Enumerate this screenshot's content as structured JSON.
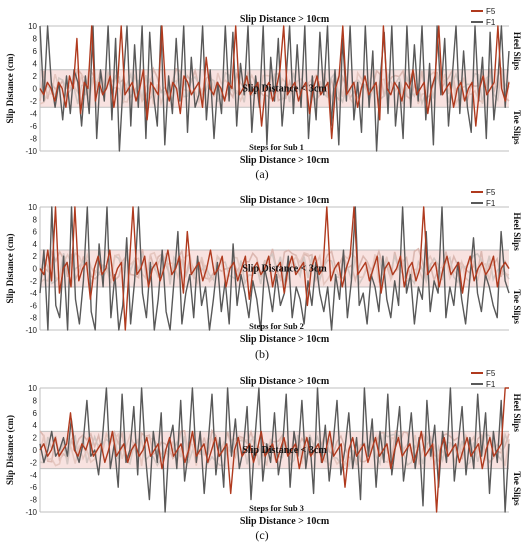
{
  "colors": {
    "F5": "#b03a1e",
    "F1": "#595959",
    "band": "#f6d8d6",
    "grid": "#bfbfbf",
    "pale_series": [
      "#d8b4ac",
      "#cfc3bf",
      "#e3c4bc"
    ]
  },
  "annotations": {
    "top": "Slip Distance > 10cm",
    "middle": "Slip Distance < 3cm",
    "bottom": "Slip Distance > 10cm",
    "heel": "Heel Slips",
    "toe": "Toe Slips"
  },
  "chart_data": [
    {
      "type": "line",
      "caption": "(a)",
      "xlabel": "Steps for Sub 1",
      "ylabel": "Slip Distance (cm)",
      "ylim": [
        -10,
        10
      ],
      "yticks": [
        10,
        8,
        6,
        4,
        2,
        0,
        -2,
        -4,
        -6,
        -8,
        -10
      ],
      "threshold_lines": [
        3,
        -3
      ],
      "legend": [
        "F5",
        "F1"
      ],
      "legend_placement": "top-right",
      "series": [
        {
          "name": "F1",
          "values": [
            10,
            -2,
            10,
            1,
            -3,
            1,
            -5,
            2,
            -4,
            3,
            1,
            -6,
            2,
            -4,
            10,
            -8,
            3,
            -2,
            10,
            -5,
            8,
            -10,
            1,
            10,
            -6,
            7,
            -3,
            10,
            -8,
            9,
            -1,
            -6,
            10,
            -9,
            2,
            -4,
            8,
            -2,
            10,
            -7,
            5,
            -3,
            -1,
            10,
            -5,
            3,
            -8,
            1,
            -4,
            10,
            -2,
            9,
            -6,
            4,
            -1,
            10,
            -7,
            2,
            -3,
            10,
            -9,
            5,
            -2,
            8,
            -6,
            1,
            10,
            -4,
            7,
            -3,
            10,
            -8,
            2,
            -5,
            9,
            -1,
            10,
            -6,
            3,
            -9,
            8,
            -2,
            10,
            -5,
            1,
            -7,
            10,
            -3,
            6,
            -10,
            2,
            9,
            -4,
            10,
            -6,
            1,
            -8,
            10,
            -3,
            7,
            -2,
            10,
            -5,
            4,
            -9,
            10,
            -1,
            8,
            -6,
            2,
            10,
            -4,
            6,
            -3,
            -7,
            10,
            -2,
            5,
            -8,
            9,
            -5,
            1,
            10,
            -3,
            6
          ]
        },
        {
          "name": "F5",
          "values": [
            0,
            -1,
            1,
            0,
            -2,
            1,
            0,
            -3,
            2,
            0,
            8,
            -4,
            1,
            0,
            10,
            -2,
            1,
            -1,
            0,
            2,
            -3,
            1,
            10,
            -1,
            0,
            1,
            -2,
            0,
            3,
            -5,
            1,
            0,
            -1,
            10,
            0,
            -2,
            1,
            0,
            -4,
            2,
            1,
            -1,
            0,
            1,
            -3,
            5,
            0,
            -1,
            1,
            0,
            -2,
            1,
            0,
            10,
            -1,
            0,
            2,
            -1,
            0,
            1,
            -6,
            0,
            1,
            -2,
            0,
            3,
            10,
            -1,
            0,
            1,
            -2,
            0,
            1,
            -4,
            0,
            2,
            -1,
            0,
            1,
            -8,
            0,
            2,
            10,
            -1,
            0,
            1,
            -3,
            0,
            2,
            -1,
            0,
            1,
            -5,
            10,
            0,
            -1,
            1,
            0,
            -2,
            1,
            0,
            3,
            -1,
            0,
            1,
            -4,
            0,
            2,
            10,
            -1,
            0,
            1,
            -3,
            0,
            1,
            -2,
            0,
            1,
            -6,
            0,
            2,
            -1,
            0,
            1,
            10,
            0,
            -2,
            1
          ]
        }
      ]
    },
    {
      "type": "line",
      "caption": "(b)",
      "xlabel": "Steps for Sub 2",
      "ylabel": "Slip Distance (cm)",
      "ylim": [
        -10,
        10
      ],
      "yticks": [
        10,
        8,
        6,
        4,
        2,
        0,
        -2,
        -4,
        -6,
        -8,
        -10
      ],
      "threshold_lines": [
        3,
        -3
      ],
      "legend": [
        "F5",
        "F1"
      ],
      "legend_placement": "top-right",
      "series": [
        {
          "name": "F1",
          "values": [
            -4,
            3,
            -10,
            10,
            -6,
            -8,
            2,
            -10,
            10,
            -5,
            -9,
            -2,
            10,
            -7,
            -10,
            4,
            -3,
            10,
            -8,
            -1,
            -10,
            -6,
            5,
            -9,
            -2,
            10,
            -4,
            -8,
            1,
            -10,
            -5,
            3,
            -7,
            -10,
            -2,
            6,
            -9,
            -4,
            -1,
            -8,
            2,
            -6,
            -3,
            -10,
            -5,
            1,
            -7,
            -2,
            -9,
            4,
            -6,
            -1,
            -4,
            -8,
            -2,
            -5,
            -10,
            0,
            -3,
            -7,
            -1,
            -6,
            -4,
            2,
            -8,
            -3,
            -5,
            -9,
            -2,
            -6,
            1,
            -4,
            -7,
            -3,
            -10,
            -1,
            -5,
            3,
            -8,
            -2,
            10,
            -6,
            -4,
            -9,
            -1,
            -3,
            -7,
            2,
            -5,
            -8,
            -2,
            -6,
            10,
            -4,
            -1,
            -9,
            -3,
            -5,
            6,
            -7,
            -2,
            -4,
            10,
            -8,
            -3,
            -6,
            1,
            -5,
            -9,
            -2,
            5,
            -4,
            -7,
            -1,
            -3,
            -6,
            -8,
            6,
            -2,
            -4
          ]
        },
        {
          "name": "F5",
          "values": [
            0,
            -1,
            3,
            -2,
            10,
            -4,
            0,
            1,
            -3,
            10,
            -2,
            0,
            1,
            -5,
            0,
            2,
            -1,
            0,
            3,
            -2,
            0,
            1,
            -10,
            0,
            10,
            -1,
            0,
            2,
            -3,
            0,
            1,
            -2,
            0,
            3,
            -1,
            0,
            2,
            -4,
            6,
            -1,
            0,
            1,
            -2,
            0,
            3,
            -1,
            0,
            2,
            -3,
            0,
            1,
            -2,
            0,
            2,
            -5,
            0,
            1,
            -1,
            0,
            2,
            -3,
            0,
            1,
            -4,
            0,
            2,
            -1,
            0,
            1,
            -6,
            0,
            2,
            -1,
            0,
            10,
            -2,
            0,
            1,
            -3,
            0,
            2,
            10,
            -1,
            0,
            1,
            -2,
            0,
            2,
            -4,
            0,
            1,
            -1,
            0,
            2,
            -3,
            0,
            1,
            -2,
            0,
            10,
            -1,
            0,
            1,
            -3,
            0,
            2,
            -1,
            0,
            1,
            -4,
            0,
            2,
            -2,
            0,
            1,
            -1,
            0,
            2,
            -3,
            0,
            1,
            0
          ]
        }
      ]
    },
    {
      "type": "line",
      "caption": "(c)",
      "xlabel": "Steps for Sub 3",
      "ylabel": "Slip Distance (cm)",
      "ylim": [
        -10,
        10
      ],
      "yticks": [
        10,
        8,
        6,
        4,
        2,
        0,
        -2,
        -4,
        -6,
        -8,
        -10
      ],
      "threshold_lines": [
        3,
        -3
      ],
      "legend": [
        "F5",
        "F1"
      ],
      "legend_placement": "top-right",
      "series": [
        {
          "name": "F1",
          "values": [
            1,
            -2,
            0,
            3,
            -1,
            0,
            2,
            -1,
            5,
            0,
            -2,
            1,
            8,
            -1,
            0,
            -4,
            2,
            10,
            -3,
            1,
            -6,
            9,
            -2,
            0,
            7,
            -4,
            10,
            -1,
            -8,
            3,
            -2,
            6,
            -10,
            1,
            4,
            -3,
            8,
            -5,
            0,
            10,
            -2,
            3,
            -7,
            1,
            9,
            -4,
            2,
            -6,
            10,
            -1,
            5,
            -3,
            0,
            7,
            -8,
            2,
            10,
            -5,
            1,
            -2,
            6,
            -4,
            0,
            9,
            -6,
            3,
            -1,
            8,
            -3,
            2,
            -7,
            10,
            -2,
            4,
            -5,
            1,
            8,
            -4,
            0,
            6,
            -3,
            2,
            -8,
            10,
            -1,
            5,
            -6,
            3,
            -2,
            9,
            -4,
            1,
            7,
            -5,
            0,
            6,
            -3,
            2,
            -9,
            8,
            -1,
            4,
            -6,
            3,
            -2,
            10,
            -5,
            1,
            7,
            -4,
            2,
            -3,
            9,
            -1,
            6,
            -7,
            3,
            -2,
            8,
            -10,
            1
          ]
        },
        {
          "name": "F5",
          "values": [
            0,
            1,
            -1,
            0,
            2,
            -1,
            0,
            1,
            6,
            0,
            -1,
            1,
            0,
            2,
            -1,
            0,
            1,
            -2,
            0,
            3,
            -1,
            0,
            1,
            -2,
            0,
            1,
            -1,
            0,
            2,
            -1,
            0,
            1,
            -3,
            0,
            2,
            -1,
            0,
            1,
            -2,
            0,
            3,
            -1,
            0,
            1,
            -2,
            0,
            2,
            -1,
            0,
            1,
            -7,
            0,
            2,
            -1,
            0,
            1,
            -2,
            0,
            3,
            -1,
            0,
            1,
            -2,
            0,
            2,
            -1,
            0,
            1,
            -3,
            0,
            2,
            -1,
            0,
            1,
            -2,
            0,
            3,
            -1,
            0,
            1,
            -6,
            0,
            2,
            -1,
            0,
            1,
            -2,
            0,
            2,
            -1,
            0,
            1,
            -3,
            0,
            2,
            -1,
            0,
            1,
            -2,
            0,
            3,
            -1,
            0,
            1,
            -10,
            0,
            2,
            -1,
            0,
            1,
            -2,
            0,
            2,
            -1,
            0,
            1,
            -3,
            0,
            2,
            -1,
            0,
            1,
            10,
            10
          ]
        }
      ]
    }
  ]
}
